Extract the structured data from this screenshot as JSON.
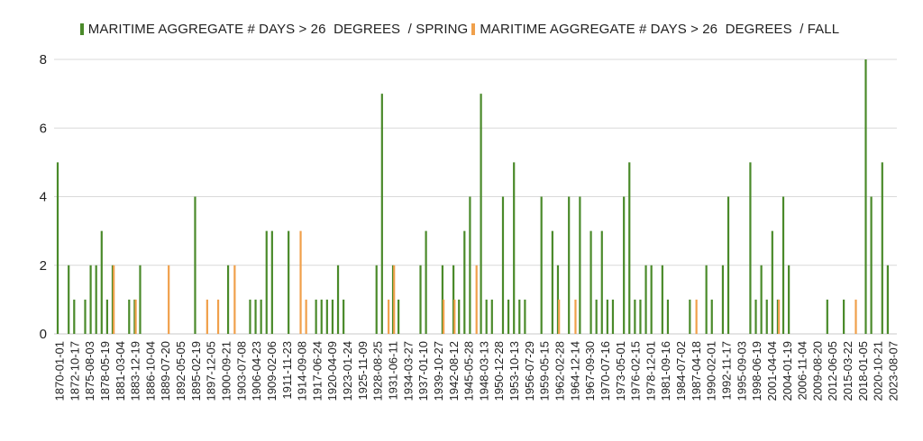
{
  "chart_data": {
    "type": "bar",
    "title": "",
    "xlabel": "",
    "ylabel": "",
    "ylim": [
      0,
      8
    ],
    "yticks": [
      0,
      2,
      4,
      6,
      8
    ],
    "grid": true,
    "legend_position": "top",
    "x_tick_labels": [
      "1870-01-01",
      "1872-10-17",
      "1875-08-03",
      "1878-05-19",
      "1881-03-04",
      "1883-12-19",
      "1886-10-04",
      "1889-07-20",
      "1892-05-05",
      "1895-02-19",
      "1897-12-05",
      "1900-09-21",
      "1903-07-08",
      "1906-04-23",
      "1909-02-06",
      "1911-11-23",
      "1914-09-08",
      "1917-06-24",
      "1920-04-09",
      "1923-01-24",
      "1925-11-09",
      "1928-08-25",
      "1931-06-11",
      "1934-03-27",
      "1937-01-10",
      "1939-10-27",
      "1942-08-12",
      "1945-05-28",
      "1948-03-13",
      "1950-12-28",
      "1953-10-13",
      "1956-07-29",
      "1959-05-15",
      "1962-02-28",
      "1964-12-14",
      "1967-09-30",
      "1970-07-16",
      "1973-05-01",
      "1976-02-15",
      "1978-12-01",
      "1981-09-16",
      "1984-07-02",
      "1987-04-18",
      "1990-02-01",
      "1992-11-17",
      "1995-09-03",
      "1998-06-19",
      "2001-04-04",
      "2004-01-19",
      "2006-11-04",
      "2009-08-20",
      "2012-06-05",
      "2015-03-22",
      "2018-01-05",
      "2020-10-21",
      "2023-08-07"
    ],
    "series": [
      {
        "name": "MARITIME AGGREGATE # DAYS > 26  DEGREES  / SPRING",
        "color": "#4a8a2a",
        "points": [
          [
            1870,
            5
          ],
          [
            1872,
            2
          ],
          [
            1873,
            1
          ],
          [
            1875,
            1
          ],
          [
            1876,
            2
          ],
          [
            1877,
            2
          ],
          [
            1878,
            3
          ],
          [
            1879,
            1
          ],
          [
            1880,
            2
          ],
          [
            1883,
            1
          ],
          [
            1884,
            1
          ],
          [
            1885,
            2
          ],
          [
            1895,
            4
          ],
          [
            1901,
            2
          ],
          [
            1905,
            1
          ],
          [
            1906,
            1
          ],
          [
            1907,
            1
          ],
          [
            1908,
            3
          ],
          [
            1909,
            3
          ],
          [
            1912,
            3
          ],
          [
            1917,
            1
          ],
          [
            1918,
            1
          ],
          [
            1919,
            1
          ],
          [
            1920,
            1
          ],
          [
            1921,
            2
          ],
          [
            1922,
            1
          ],
          [
            1928,
            2
          ],
          [
            1929,
            7
          ],
          [
            1931,
            2
          ],
          [
            1932,
            1
          ],
          [
            1936,
            2
          ],
          [
            1937,
            3
          ],
          [
            1940,
            2
          ],
          [
            1942,
            2
          ],
          [
            1943,
            1
          ],
          [
            1944,
            3
          ],
          [
            1945,
            4
          ],
          [
            1947,
            7
          ],
          [
            1948,
            1
          ],
          [
            1949,
            1
          ],
          [
            1951,
            4
          ],
          [
            1952,
            1
          ],
          [
            1953,
            5
          ],
          [
            1954,
            1
          ],
          [
            1955,
            1
          ],
          [
            1958,
            4
          ],
          [
            1960,
            3
          ],
          [
            1961,
            2
          ],
          [
            1963,
            4
          ],
          [
            1965,
            4
          ],
          [
            1967,
            3
          ],
          [
            1968,
            1
          ],
          [
            1969,
            3
          ],
          [
            1970,
            1
          ],
          [
            1971,
            1
          ],
          [
            1973,
            4
          ],
          [
            1974,
            5
          ],
          [
            1975,
            1
          ],
          [
            1976,
            1
          ],
          [
            1977,
            2
          ],
          [
            1978,
            2
          ],
          [
            1980,
            2
          ],
          [
            1981,
            1
          ],
          [
            1985,
            1
          ],
          [
            1988,
            2
          ],
          [
            1989,
            1
          ],
          [
            1991,
            2
          ],
          [
            1992,
            4
          ],
          [
            1996,
            5
          ],
          [
            1997,
            1
          ],
          [
            1998,
            2
          ],
          [
            1999,
            1
          ],
          [
            2000,
            3
          ],
          [
            2001,
            1
          ],
          [
            2002,
            4
          ],
          [
            2003,
            2
          ],
          [
            2010,
            1
          ],
          [
            2013,
            1
          ],
          [
            2017,
            8
          ],
          [
            2018,
            4
          ],
          [
            2020,
            5
          ],
          [
            2021,
            2
          ]
        ]
      },
      {
        "name": "MARITIME AGGREGATE # DAYS > 26  DEGREES  / FALL",
        "color": "#f0a04b",
        "points": [
          [
            1880,
            2
          ],
          [
            1884,
            1
          ],
          [
            1890,
            2
          ],
          [
            1897,
            1
          ],
          [
            1899,
            1
          ],
          [
            1902,
            2
          ],
          [
            1914,
            3
          ],
          [
            1915,
            1
          ],
          [
            1930,
            1
          ],
          [
            1931,
            2
          ],
          [
            1940,
            1
          ],
          [
            1942,
            1
          ],
          [
            1946,
            2
          ],
          [
            1961,
            1
          ],
          [
            1964,
            1
          ],
          [
            1986,
            1
          ],
          [
            2001,
            1
          ],
          [
            2015,
            1
          ]
        ]
      }
    ]
  }
}
